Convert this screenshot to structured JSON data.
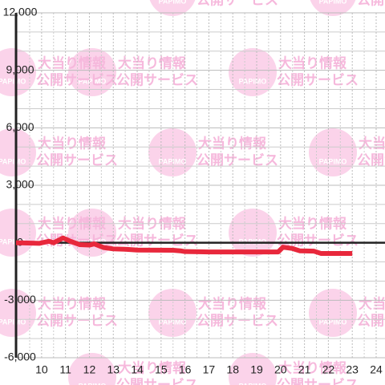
{
  "chart_data": {
    "type": "line",
    "watermark": {
      "logo": "PAPIMO",
      "line1": "大当り情報",
      "line2": "公開サービス"
    },
    "x": [
      8.93,
      9.9,
      10.3,
      10.5,
      10.9,
      11.2,
      11.6,
      12.0,
      12.2,
      12.6,
      13.0,
      13.5,
      14.0,
      15.5,
      15.8,
      16.0,
      17.0,
      19.9,
      20.1,
      20.5,
      20.8,
      21.4,
      21.7,
      23.0
    ],
    "series": [
      {
        "color": "#e8283c",
        "values": [
          0,
          -30,
          80,
          0,
          250,
          80,
          -100,
          -120,
          -60,
          -250,
          -320,
          -340,
          -380,
          -390,
          -420,
          -460,
          -480,
          -480,
          -230,
          -300,
          -420,
          -440,
          -560,
          -560
        ]
      }
    ],
    "xlim": [
      8.93,
      24.37
    ],
    "xticks": [
      10,
      11,
      12,
      13,
      14,
      15,
      16,
      17,
      18,
      19,
      20,
      21,
      22,
      23,
      24
    ],
    "x_minor_ticks": [
      9.5,
      10.5,
      11.5,
      12.5,
      13.5,
      14.5,
      15.5,
      16.5,
      17.5,
      18.5,
      19.5,
      20.5,
      21.5,
      22.5,
      23.5
    ],
    "ylim": [
      -6000,
      12000
    ],
    "yticks": [
      {
        "value": 12000,
        "label": "12,000"
      },
      {
        "value": 9000,
        "label": "9,000"
      },
      {
        "value": 6000,
        "label": "6,000"
      },
      {
        "value": 3000,
        "label": "3,000"
      },
      0,
      {
        "value": -3000,
        "label": "-3,000"
      },
      {
        "value": -6000,
        "label": "-6,000"
      }
    ],
    "y_minor_ticks": [
      11000,
      10000,
      8000,
      7000,
      5000,
      4000,
      2000,
      1000,
      -1000,
      -2000,
      -4000,
      -5000
    ],
    "grid": true
  }
}
